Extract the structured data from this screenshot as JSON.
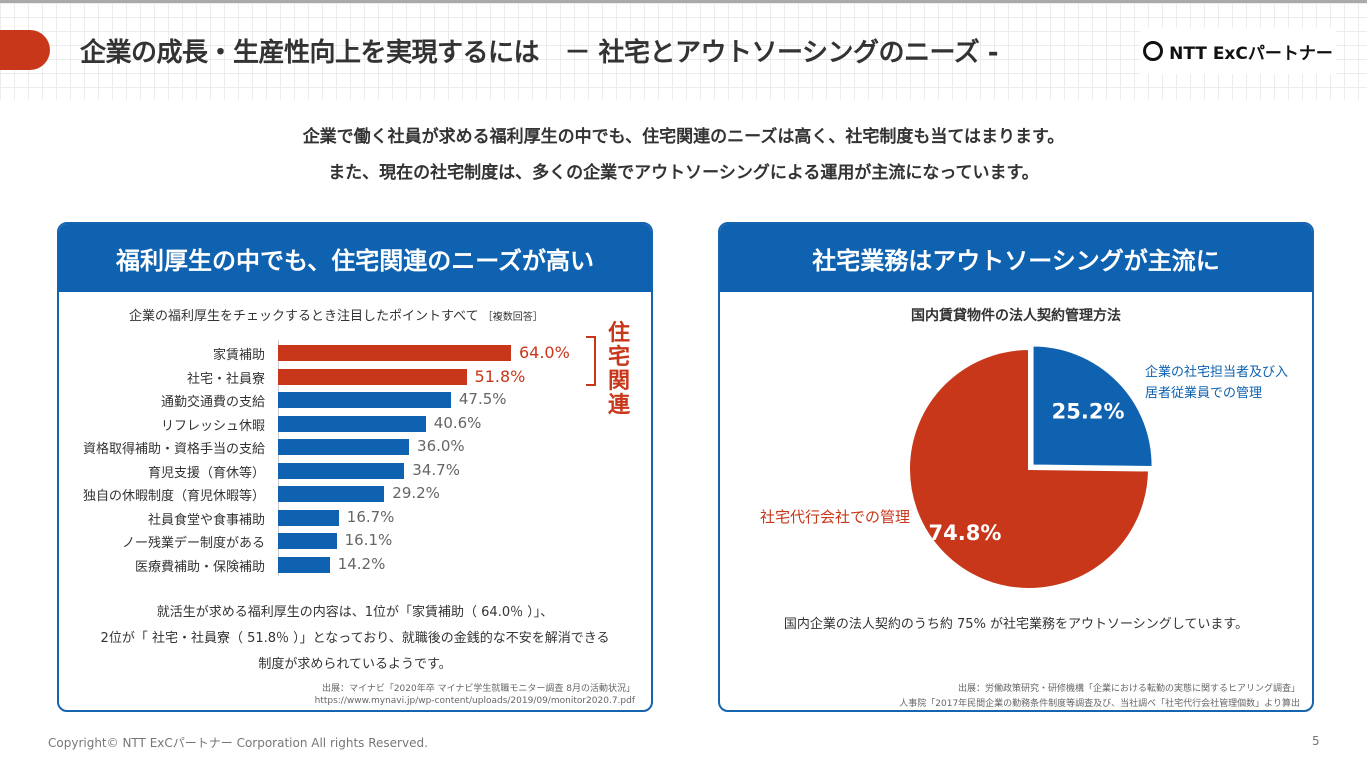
{
  "header": {
    "title": "企業の成長・生産性向上を実現するには　－ 社宅とアウトソーシングのニーズ -",
    "logo_text": "NTT ExCパートナー"
  },
  "lead": [
    "企業で働く社員が求める福利厚生の中でも、住宅関連のニーズは高く、社宅制度も当てはまります。",
    "また、現在の社宅制度は、多くの企業でアウトソーシングによる運用が主流になっています。"
  ],
  "left_panel": {
    "heading": "福利厚生の中でも、住宅関連のニーズが高い",
    "note": "就活生が求める福利厚生の内容は、1位が「家賃補助（ 64.0％ ）」、\n2位が「 社宅・社員寮（ 51.8％ ）」となっており、就職後の金銭的な不安を解消できる\n制度が求められているようです。",
    "source1": "出展：マイナビ「2020年卒 マイナビ学生就職モニター調査 8月の活動状況」",
    "source2": "https://www.mynavi.jp/wp-content/uploads/2019/09/monitor2020.7.pdf",
    "bracket_label": "住宅関連"
  },
  "right_panel": {
    "heading": "社宅業務はアウトソーシングが主流に",
    "note": "国内企業の法人契約のうち約 75% が社宅業務をアウトソーシングしています。",
    "source1": "出展：労働政策研究・研修機構「企業における転勤の実態に関するヒアリング調査」",
    "source2": "人事院「2017年民間企業の勤務条件制度等調査及び、当社調べ「社宅代行会社管理個数」より算出"
  },
  "chart_data": [
    {
      "type": "bar",
      "orientation": "horizontal",
      "title": "企業の福利厚生をチェックするとき注目したポイントすべて",
      "title_note": "［複数回答］",
      "categories": [
        "家賃補助",
        "社宅・社員寮",
        "通勤交通費の支給",
        "リフレッシュ休暇",
        "資格取得補助・資格手当の支給",
        "育児支援（育休等）",
        "独自の休暇制度（育児休暇等）",
        "社員食堂や食事補助",
        "ノー残業デー制度がある",
        "医療費補助・保険補助"
      ],
      "values": [
        64.0,
        51.8,
        47.5,
        40.6,
        36.0,
        34.7,
        29.2,
        16.7,
        16.1,
        14.2
      ],
      "value_labels": [
        "64.0%",
        "51.8%",
        "47.5%",
        "40.6%",
        "36.0%",
        "34.7%",
        "29.2%",
        "16.7%",
        "16.1%",
        "14.2%"
      ],
      "highlight": [
        true,
        true,
        false,
        false,
        false,
        false,
        false,
        false,
        false,
        false
      ],
      "colors": {
        "highlight": "#c8371a",
        "normal": "#0e62b0"
      }
    },
    {
      "type": "pie",
      "title": "国内賃貸物件の法人契約管理方法",
      "slices": [
        {
          "label": "企業の社宅担当者及び入居者従業員での管理",
          "value": 25.2,
          "value_label": "25.2%",
          "color": "#0e62b0"
        },
        {
          "label": "社宅代行会社での管理",
          "value": 74.8,
          "value_label": "74.8%",
          "color": "#c8371a"
        }
      ]
    }
  ],
  "footer": {
    "copyright": "Copyright© NTT ExCパートナー Corporation All rights Reserved.",
    "page": "5"
  }
}
